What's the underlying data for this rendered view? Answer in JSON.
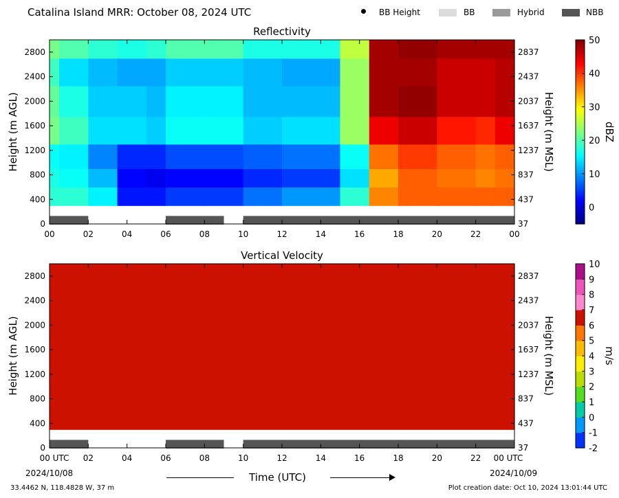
{
  "figure": {
    "title": "Catalina Island MRR:  October 08, 2024 UTC",
    "legend": [
      {
        "label": "BB Height",
        "kind": "marker",
        "color": "#000000"
      },
      {
        "label": "BB",
        "kind": "swatch",
        "color": "#dcdcdc"
      },
      {
        "label": "Hybrid",
        "kind": "swatch",
        "color": "#9a9a9a"
      },
      {
        "label": "NBB",
        "kind": "swatch",
        "color": "#555555"
      }
    ],
    "xlabel": "Time (UTC)",
    "start_date": "2024/10/08",
    "end_date": "2024/10/09",
    "location": "33.4462 N, 118.4828 W, 37 m",
    "creation": "Plot creation date: Oct 10, 2024 13:01:44 UTC"
  },
  "chart_data": [
    {
      "type": "heatmap",
      "title": "Reflectivity",
      "ylabel": "Height (m AGL)",
      "y2label": "Height (m MSL)",
      "xlim": [
        0,
        24
      ],
      "ylim": [
        0,
        3000
      ],
      "x_ticks": [
        "00",
        "02",
        "04",
        "06",
        "08",
        "10",
        "12",
        "14",
        "16",
        "18",
        "20",
        "22",
        "00"
      ],
      "y_ticks": [
        0,
        400,
        800,
        1200,
        1600,
        2000,
        2400,
        2800
      ],
      "y2_ticks": [
        37,
        437,
        837,
        1237,
        1637,
        2037,
        2437,
        2837
      ],
      "colorbar": {
        "label": "dBZ",
        "min": -5,
        "max": 50,
        "ticks": [
          0,
          10,
          20,
          30,
          40,
          50
        ]
      },
      "data_rows": [
        {
          "bottom": 300,
          "top": 600,
          "values": [
            18,
            18,
            15,
            3,
            3,
            5,
            5,
            8,
            8,
            10,
            10,
            18,
            36,
            38,
            38,
            38,
            38
          ]
        },
        {
          "bottom": 600,
          "top": 900,
          "values": [
            17,
            16,
            12,
            2,
            1,
            2,
            2,
            4,
            4,
            5,
            5,
            14,
            34,
            38,
            37,
            36,
            37
          ]
        },
        {
          "bottom": 900,
          "top": 1300,
          "values": [
            16,
            15,
            9,
            4,
            4,
            6,
            6,
            7,
            7,
            8,
            8,
            16,
            37,
            40,
            38,
            37,
            38
          ]
        },
        {
          "bottom": 1300,
          "top": 1750,
          "values": [
            22,
            19,
            14,
            14,
            13,
            16,
            16,
            13,
            13,
            14,
            14,
            24,
            44,
            46,
            42,
            41,
            44
          ]
        },
        {
          "bottom": 1750,
          "top": 2250,
          "values": [
            21,
            17,
            13,
            13,
            12,
            15,
            15,
            12,
            12,
            12,
            12,
            24,
            48,
            49,
            46,
            46,
            47
          ]
        },
        {
          "bottom": 2250,
          "top": 2700,
          "values": [
            19,
            14,
            12,
            11,
            11,
            13,
            13,
            12,
            12,
            11,
            11,
            24,
            48,
            48,
            46,
            46,
            47
          ]
        },
        {
          "bottom": 2700,
          "top": 3000,
          "values": [
            22,
            20,
            18,
            17,
            18,
            20,
            20,
            17,
            17,
            17,
            17,
            26,
            48,
            49,
            48,
            48,
            48
          ]
        }
      ],
      "x_edges": [
        0,
        0.5,
        2,
        3.5,
        5,
        6,
        8,
        10,
        11,
        12,
        14,
        15,
        16.5,
        18,
        20,
        22,
        23,
        24
      ],
      "bb_bars": [
        {
          "class": "NBB",
          "start": 0,
          "end": 2
        },
        {
          "class": "NBB",
          "start": 6,
          "end": 9
        },
        {
          "class": "NBB",
          "start": 10,
          "end": 24
        }
      ]
    },
    {
      "type": "heatmap",
      "title": "Vertical Velocity",
      "ylabel": "Height (m AGL)",
      "y2label": "Height (m MSL)",
      "xlim": [
        0,
        24
      ],
      "ylim": [
        0,
        3000
      ],
      "x_ticks": [
        "00 UTC",
        "02",
        "04",
        "06",
        "08",
        "10",
        "12",
        "14",
        "16",
        "18",
        "20",
        "22",
        "00 UTC"
      ],
      "y_ticks": [
        0,
        400,
        800,
        1200,
        1600,
        2000,
        2400,
        2800
      ],
      "y2_ticks": [
        37,
        437,
        837,
        1237,
        1637,
        2037,
        2437,
        2837
      ],
      "colorbar": {
        "label": "m/s",
        "min": -2,
        "max": 10,
        "ticks": [
          -2,
          -1,
          0,
          1,
          2,
          3,
          4,
          5,
          6,
          7,
          8,
          9,
          10
        ]
      },
      "data_rows": [
        {
          "bottom": 300,
          "top": 3000,
          "values": [
            6
          ]
        }
      ],
      "x_edges": [
        0,
        24
      ],
      "bb_bars": [
        {
          "class": "NBB",
          "start": 0,
          "end": 2
        },
        {
          "class": "NBB",
          "start": 6,
          "end": 9
        },
        {
          "class": "NBB",
          "start": 10,
          "end": 24
        }
      ]
    }
  ]
}
